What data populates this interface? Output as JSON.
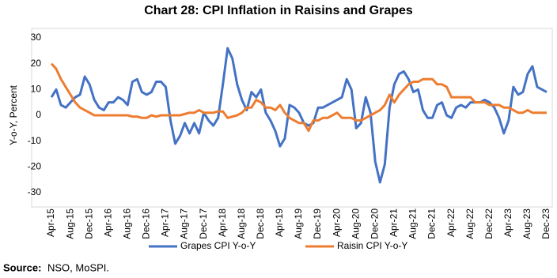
{
  "chart_data": {
    "type": "line",
    "title": "Chart 28: CPI Inflation in Raisins and Grapes",
    "y_label": "Y-o-Y, Percent",
    "categories": [
      "Apr-15",
      null,
      null,
      null,
      "Aug-15",
      null,
      null,
      null,
      "Dec-15",
      null,
      null,
      null,
      "Apr-16",
      null,
      null,
      null,
      "Aug-16",
      null,
      null,
      null,
      "Dec-16",
      null,
      null,
      null,
      "Apr-17",
      null,
      null,
      null,
      "Aug-17",
      null,
      null,
      null,
      "Dec-17",
      null,
      null,
      null,
      "Apr-18",
      null,
      null,
      null,
      "Aug-18",
      null,
      null,
      null,
      "Dec-18",
      null,
      null,
      null,
      "Apr-19",
      null,
      null,
      null,
      "Aug-19",
      null,
      null,
      null,
      "Dec-19",
      null,
      null,
      null,
      "Apr-20",
      null,
      null,
      null,
      "Aug-20",
      null,
      null,
      null,
      "Dec-20",
      null,
      null,
      null,
      "Apr-21",
      null,
      null,
      null,
      "Aug-21",
      null,
      null,
      null,
      "Dec-21",
      null,
      null,
      null,
      "Apr-22",
      null,
      null,
      null,
      "Aug-22",
      null,
      null,
      null,
      "Dec-22",
      null,
      null,
      null,
      "Apr-23",
      null,
      null,
      null,
      "Aug-23",
      null,
      null,
      null,
      "Dec-23"
    ],
    "series": [
      {
        "name": "Grapes CPI Y-o-Y",
        "color": "#4472c4",
        "values": [
          7,
          10,
          4,
          3,
          5,
          7,
          8,
          15,
          12,
          6,
          3,
          2,
          5,
          5,
          7,
          6,
          4,
          13,
          14,
          9,
          8,
          9,
          13,
          13,
          11,
          -2,
          -11,
          -8,
          -3,
          -7,
          -3,
          -7,
          1,
          -2,
          -4,
          -1,
          12,
          26,
          22,
          12,
          6,
          2,
          9,
          7,
          10,
          1,
          -2,
          -6,
          -12,
          -9,
          4,
          3,
          1,
          -3,
          -4,
          -3,
          3,
          3,
          4,
          5,
          6,
          7,
          14,
          10,
          -5,
          -3,
          7,
          1,
          -18,
          -26,
          -19,
          3,
          12,
          16,
          17,
          14,
          9,
          10,
          2,
          -1,
          -1,
          4,
          5,
          0,
          -1,
          3,
          4,
          3,
          5,
          5,
          5,
          6,
          5,
          3,
          -1,
          -7,
          -2,
          11,
          8,
          9,
          16,
          19,
          11,
          10,
          9
        ]
      },
      {
        "name": "Raisin CPI Y-o-Y",
        "color": "#ed7d31",
        "values": [
          20,
          18,
          14,
          11,
          8,
          5,
          3,
          2,
          1,
          0,
          0,
          0,
          0,
          0,
          0,
          0,
          0,
          -0.5,
          -0.5,
          -1,
          -1,
          0,
          -0.5,
          0,
          0,
          0,
          0,
          0,
          0.5,
          1,
          1,
          2,
          1,
          1,
          1,
          1.5,
          1.5,
          -1,
          -0.5,
          0,
          1,
          3,
          3,
          6,
          5,
          3,
          3,
          2,
          4,
          1,
          -1,
          -2,
          -3,
          -3,
          -6,
          -2,
          -2,
          -1,
          -1,
          0,
          1,
          -1,
          -1,
          -1,
          -2,
          -2,
          -1,
          0,
          1,
          2,
          4,
          8,
          5,
          8,
          10,
          12,
          13,
          13,
          14,
          14,
          14,
          12,
          12,
          11,
          7,
          7,
          7,
          7,
          7,
          5,
          5,
          5,
          4,
          4,
          4,
          3,
          3,
          2,
          1,
          1,
          2,
          1,
          1,
          1,
          1
        ]
      }
    ],
    "ylim": [
      -30,
      30
    ],
    "yticks": [
      -30,
      -20,
      -10,
      0,
      10,
      20,
      30
    ],
    "grid": false,
    "legend": "bottom",
    "source": {
      "label": "Source:",
      "text": "NSO, MoSPI."
    }
  }
}
